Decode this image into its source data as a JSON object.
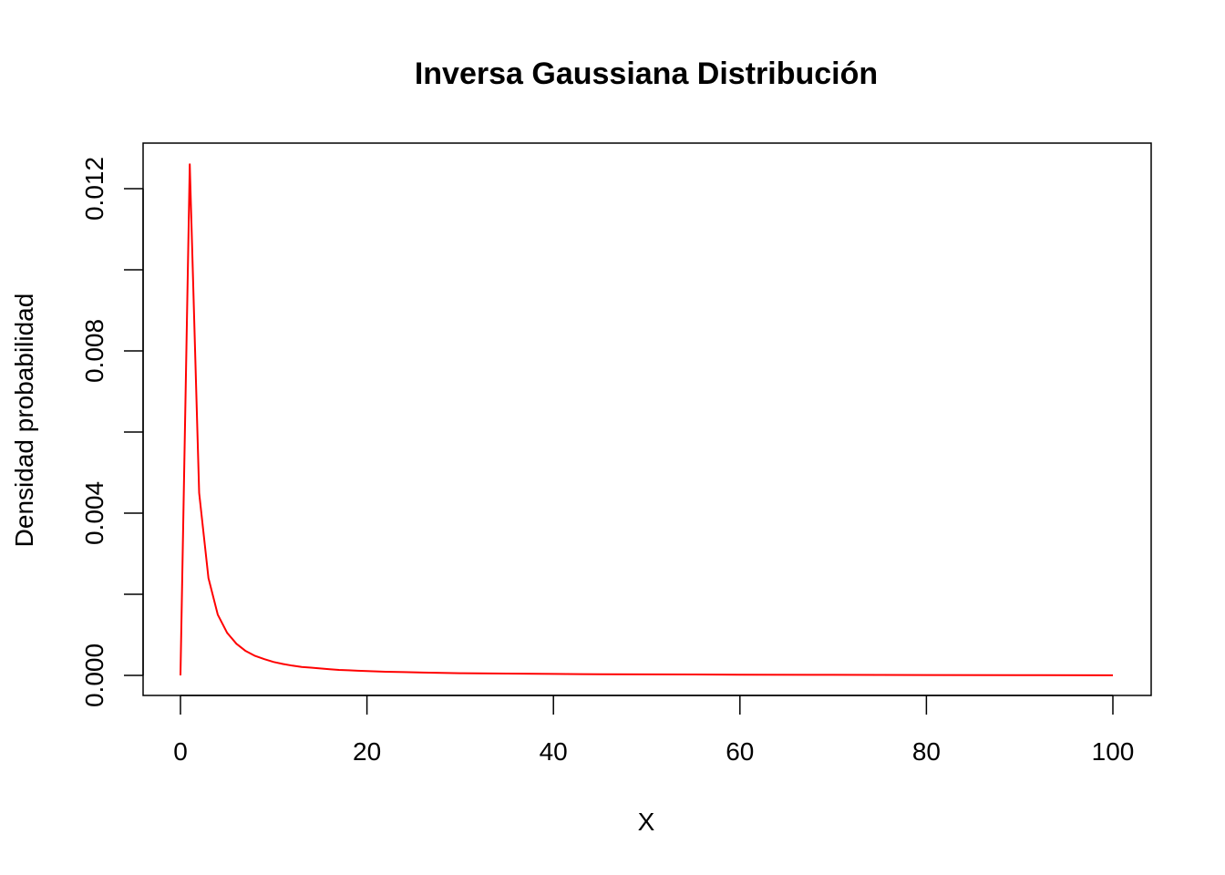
{
  "chart_data": {
    "type": "line",
    "title": "Inversa Gaussiana Distribución",
    "xlabel": "X",
    "ylabel": "Densidad probabilidad",
    "xlim": [
      0,
      100
    ],
    "ylim": [
      0,
      0.0125
    ],
    "x_ticks": [
      0,
      20,
      40,
      60,
      80,
      100
    ],
    "x_tick_labels": [
      "0",
      "20",
      "40",
      "60",
      "80",
      "100"
    ],
    "y_ticks": [
      0,
      0.002,
      0.004,
      0.006,
      0.008,
      0.01,
      0.012
    ],
    "y_tick_labels": [
      "0.000",
      "",
      "0.004",
      "",
      "0.008",
      "",
      "0.012"
    ],
    "grid": false,
    "legend": "none",
    "series": [
      {
        "color": "#ff0000",
        "x": [
          0,
          1,
          2,
          3,
          4,
          5,
          6,
          7,
          8,
          9,
          10,
          11,
          12,
          13,
          14,
          15,
          16,
          17,
          18,
          19,
          20,
          22,
          24,
          26,
          28,
          30,
          35,
          40,
          45,
          50,
          60,
          70,
          80,
          90,
          100
        ],
        "y": [
          0,
          0.0126,
          0.0045,
          0.0024,
          0.0015,
          0.00105,
          0.00078,
          0.0006,
          0.00048,
          0.0004,
          0.00033,
          0.00028,
          0.00024,
          0.00021,
          0.00019,
          0.00017,
          0.00015,
          0.000135,
          0.000125,
          0.000115,
          0.000105,
          9e-05,
          8e-05,
          7e-05,
          6.2e-05,
          5.5e-05,
          4.5e-05,
          3.5e-05,
          3e-05,
          2.5e-05,
          1.8e-05,
          1.4e-05,
          1e-05,
          6e-06,
          3e-06
        ]
      }
    ]
  }
}
